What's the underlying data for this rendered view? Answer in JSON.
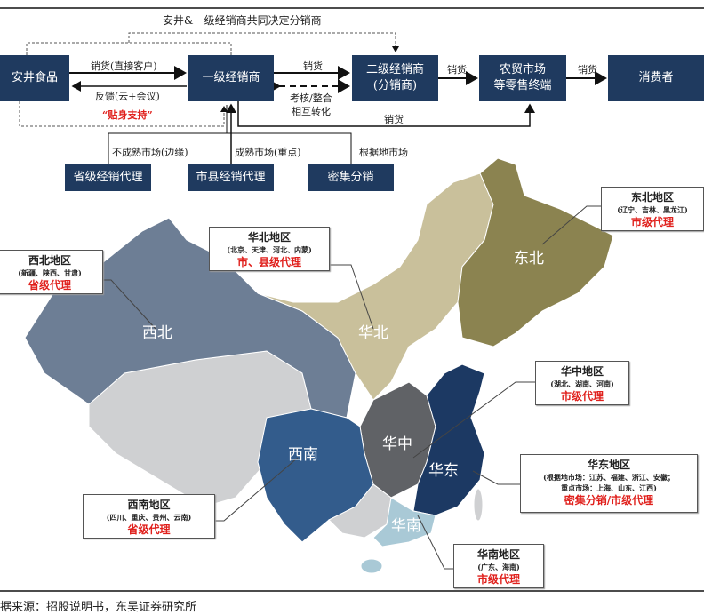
{
  "flow": {
    "top_note": "安井&一级经销商共同决定分销商",
    "nodes": {
      "anjing": "安井食品",
      "tier1": "一级经销商",
      "tier2_line1": "二级经销商",
      "tier2_line2": "(分销商)",
      "market_line1": "农贸市场",
      "market_line2": "等零售终端",
      "consumer": "消费者"
    },
    "edges": {
      "sell_direct": "销货(直接客户)",
      "feedback": "反馈(云+会议)",
      "support": "“贴身支持”",
      "sell_t1_t2": "销货",
      "assess_line1": "考核/整合",
      "assess_line2": "相互转化",
      "sell_t2_market": "销货",
      "sell_market_consumer": "销货",
      "sell_t1_market": "销货"
    },
    "channels": [
      {
        "market": "不成熟市场(边缘)",
        "label": "省级经销代理"
      },
      {
        "market": "成熟市场(重点)",
        "label": "市县经销代理"
      },
      {
        "market": "根据地市场",
        "label": "密集分销"
      }
    ]
  },
  "map": {
    "colors": {
      "northwest": "#6d7e95",
      "north": "#c9c09b",
      "northeast": "#8b8350",
      "central": "#606266",
      "east": "#1c3963",
      "southwest": "#335c8c",
      "south": "#a9c9d6",
      "other": "#cfd0d2"
    },
    "region_names": {
      "northwest": "西北",
      "north": "华北",
      "northeast": "东北",
      "central": "华中",
      "east": "华东",
      "southwest": "西南",
      "south": "华南"
    },
    "callouts": {
      "northeast": {
        "title": "东北地区",
        "provinces": "(辽宁、吉林、黑龙江)",
        "agent": "市级代理"
      },
      "north": {
        "title": "华北地区",
        "provinces": "(北京、天津、河北、内蒙)",
        "agent": "市、县级代理"
      },
      "northwest": {
        "title": "西北地区",
        "provinces": "(新疆、陕西、甘肃)",
        "agent": "省级代理"
      },
      "central": {
        "title": "华中地区",
        "provinces": "(湖北、湖南、河南)",
        "agent": "市级代理"
      },
      "east": {
        "title": "华东地区",
        "provinces_line1": "(根据地市场：江苏、福建、浙江、安徽；",
        "provinces_line2": "重点市场：上海、山东、江西)",
        "agent": "密集分销/市级代理"
      },
      "southwest": {
        "title": "西南地区",
        "provinces": "(四川、重庆、贵州、云南)",
        "agent": "省级代理"
      },
      "south": {
        "title": "华南地区",
        "provinces": "(广东、海南)",
        "agent": "市级代理"
      }
    }
  },
  "source": "据来源：招股说明书，东吴证券研究所"
}
